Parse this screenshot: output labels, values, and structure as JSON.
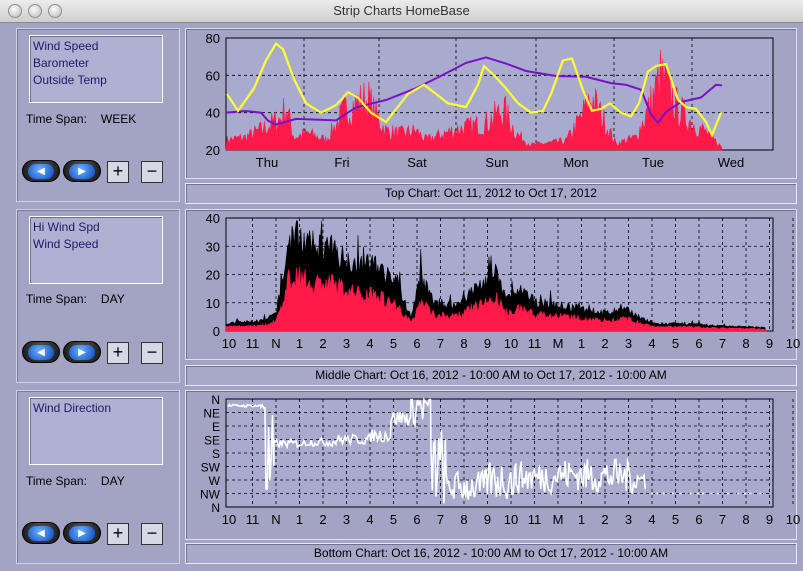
{
  "window": {
    "title": "Strip Charts   HomeBase"
  },
  "colors": {
    "background": "#a3a3c4",
    "plot_bg": "#a8abce",
    "speed": "#ff1a4a",
    "temp": "#ffff33",
    "baro": "#7b10c8",
    "hiwind": "#000000",
    "direction": "#ffffff"
  },
  "panels": [
    {
      "items": [
        "Wind Speed",
        "Barometer",
        "Outside Temp"
      ],
      "time_span_label": "Time Span:",
      "time_span": "WEEK",
      "caption": "Top Chart:  Oct 11, 2012  to  Oct 17, 2012"
    },
    {
      "items": [
        "Hi Wind Spd",
        "Wind Speed"
      ],
      "time_span_label": "Time Span:",
      "time_span": "DAY",
      "caption": "Middle Chart:  Oct 16, 2012 - 10:00 AM  to  Oct 17, 2012 - 10:00 AM"
    },
    {
      "items": [
        "Wind Direction"
      ],
      "time_span_label": "Time Span:",
      "time_span": "DAY",
      "caption": "Bottom Chart:  Oct 16, 2012 - 10:00 AM  to  Oct 17, 2012 - 10:00 AM"
    }
  ],
  "buttons": {
    "prev": "◀",
    "next": "▶",
    "plus": "+",
    "minus": "−"
  },
  "chart_data": [
    {
      "type": "line",
      "x_ticks": [
        "Thu",
        "Fri",
        "Sat",
        "Sun",
        "Mon",
        "Tue",
        "Wed"
      ],
      "y_ticks": [
        "20",
        "40",
        "60",
        "80"
      ],
      "ylim": [
        20,
        80
      ],
      "grid": true,
      "series": [
        {
          "name": "Wind Speed",
          "color": "#ff1a4a",
          "style": "filled-spikes"
        },
        {
          "name": "Barometer",
          "color": "#7b10c8",
          "style": "line"
        },
        {
          "name": "Outside Temp",
          "color": "#ffff33",
          "style": "line"
        }
      ]
    },
    {
      "type": "area",
      "x_ticks": [
        "10",
        "11",
        "N",
        "1",
        "2",
        "3",
        "4",
        "5",
        "6",
        "7",
        "8",
        "9",
        "10",
        "11",
        "M",
        "1",
        "2",
        "3",
        "4",
        "5",
        "6",
        "7",
        "8",
        "9",
        "10"
      ],
      "y_ticks": [
        "0",
        "10",
        "20",
        "30",
        "40"
      ],
      "ylim": [
        0,
        40
      ],
      "grid": true,
      "series": [
        {
          "name": "Hi Wind Spd",
          "color": "#000000"
        },
        {
          "name": "Wind Speed",
          "color": "#ff1a4a"
        }
      ]
    },
    {
      "type": "line",
      "x_ticks": [
        "10",
        "11",
        "N",
        "1",
        "2",
        "3",
        "4",
        "5",
        "6",
        "7",
        "8",
        "9",
        "10",
        "11",
        "M",
        "1",
        "2",
        "3",
        "4",
        "5",
        "6",
        "7",
        "8",
        "9",
        "10"
      ],
      "y_ticks": [
        "N",
        "NW",
        "W",
        "SW",
        "S",
        "SE",
        "E",
        "NE",
        "N"
      ],
      "grid": true,
      "series": [
        {
          "name": "Wind Direction",
          "color": "#ffffff"
        }
      ]
    }
  ]
}
